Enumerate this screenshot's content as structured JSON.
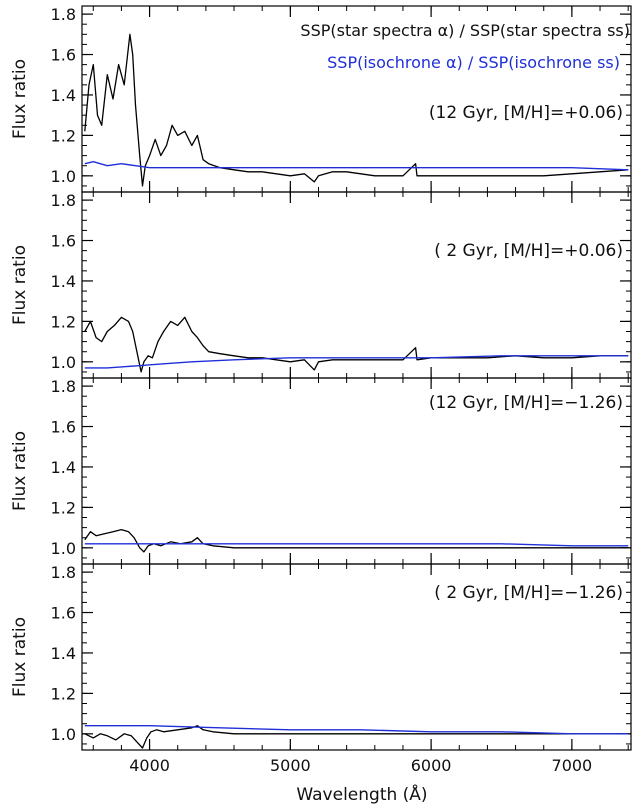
{
  "chart_data": {
    "type": "line",
    "xlabel": "Wavelength (Å)",
    "ylabel": "Flux ratio",
    "xlim": [
      3520,
      7420
    ],
    "ylim": [
      0.92,
      1.84
    ],
    "x_ticks": [
      "4000",
      "5000",
      "6000",
      "7000"
    ],
    "y_ticks": [
      "1.0",
      "1.2",
      "1.4",
      "1.6",
      "1.8"
    ],
    "legend": [
      {
        "label": "SSP(star spectra α) / SSP(star spectra ss)",
        "color": "#000000"
      },
      {
        "label": "SSP(isochrone α) / SSP(isochrone ss)",
        "color": "#1f2fd8"
      }
    ],
    "panels": [
      {
        "label": "(12 Gyr, [M/H]=+0.06)",
        "series": [
          {
            "color": "#000000",
            "x": [
              3540,
              3570,
              3600,
              3630,
              3660,
              3700,
              3740,
              3780,
              3820,
              3860,
              3880,
              3900,
              3930,
              3950,
              3970,
              4000,
              4040,
              4080,
              4120,
              4160,
              4200,
              4250,
              4300,
              4340,
              4380,
              4420,
              4500,
              4600,
              4700,
              4800,
              4900,
              5000,
              5100,
              5170,
              5200,
              5300,
              5400,
              5500,
              5600,
              5700,
              5800,
              5890,
              5900,
              6000,
              6200,
              6400,
              6600,
              6800,
              7000,
              7200,
              7400
            ],
            "y": [
              1.22,
              1.45,
              1.55,
              1.3,
              1.25,
              1.5,
              1.38,
              1.55,
              1.45,
              1.7,
              1.6,
              1.35,
              1.1,
              0.95,
              1.05,
              1.1,
              1.18,
              1.1,
              1.15,
              1.25,
              1.2,
              1.22,
              1.15,
              1.2,
              1.08,
              1.06,
              1.04,
              1.03,
              1.02,
              1.02,
              1.01,
              1.0,
              1.01,
              0.97,
              1.0,
              1.02,
              1.02,
              1.01,
              1.0,
              1.0,
              1.0,
              1.06,
              1.0,
              1.0,
              1.0,
              1.0,
              1.0,
              1.0,
              1.01,
              1.02,
              1.03
            ]
          },
          {
            "color": "#1f2fd8",
            "x": [
              3540,
              3600,
              3700,
              3800,
              3900,
              4000,
              4200,
              4500,
              5000,
              5500,
              6000,
              6500,
              7000,
              7400
            ],
            "y": [
              1.06,
              1.07,
              1.05,
              1.06,
              1.05,
              1.04,
              1.04,
              1.04,
              1.04,
              1.04,
              1.04,
              1.04,
              1.04,
              1.03
            ]
          }
        ]
      },
      {
        "label": "( 2 Gyr, [M/H]=+0.06)",
        "series": [
          {
            "color": "#000000",
            "x": [
              3540,
              3580,
              3620,
              3660,
              3700,
              3750,
              3800,
              3850,
              3880,
              3910,
              3940,
              3960,
              3990,
              4020,
              4060,
              4100,
              4150,
              4200,
              4250,
              4300,
              4340,
              4380,
              4420,
              4500,
              4600,
              4700,
              4800,
              4900,
              5000,
              5100,
              5170,
              5200,
              5300,
              5400,
              5500,
              5600,
              5700,
              5800,
              5890,
              5900,
              6000,
              6200,
              6400,
              6600,
              6800,
              7000,
              7200,
              7400
            ],
            "y": [
              1.15,
              1.2,
              1.12,
              1.1,
              1.15,
              1.18,
              1.22,
              1.2,
              1.15,
              1.05,
              0.95,
              1.0,
              1.03,
              1.02,
              1.1,
              1.15,
              1.2,
              1.18,
              1.22,
              1.15,
              1.12,
              1.08,
              1.05,
              1.04,
              1.03,
              1.02,
              1.02,
              1.01,
              1.0,
              1.01,
              0.96,
              1.0,
              1.01,
              1.01,
              1.01,
              1.01,
              1.01,
              1.01,
              1.07,
              1.01,
              1.02,
              1.02,
              1.02,
              1.03,
              1.02,
              1.02,
              1.03,
              1.03
            ]
          },
          {
            "color": "#1f2fd8",
            "x": [
              3540,
              3700,
              3900,
              4100,
              4300,
              4600,
              5000,
              5500,
              6000,
              6500,
              7000,
              7400
            ],
            "y": [
              0.97,
              0.97,
              0.98,
              0.99,
              1.0,
              1.01,
              1.02,
              1.02,
              1.02,
              1.03,
              1.03,
              1.03
            ]
          }
        ]
      },
      {
        "label": "(12 Gyr, [M/H]=−1.26)",
        "series": [
          {
            "color": "#000000",
            "x": [
              3540,
              3580,
              3620,
              3680,
              3740,
              3800,
              3850,
              3890,
              3930,
              3960,
              3990,
              4030,
              4080,
              4150,
              4220,
              4300,
              4340,
              4380,
              4450,
              4600,
              4800,
              5000,
              5200,
              5500,
              6000,
              6500,
              7000,
              7400
            ],
            "y": [
              1.04,
              1.08,
              1.06,
              1.07,
              1.08,
              1.09,
              1.08,
              1.05,
              1.0,
              0.98,
              1.01,
              1.02,
              1.01,
              1.03,
              1.02,
              1.03,
              1.05,
              1.02,
              1.01,
              1.0,
              1.0,
              1.0,
              1.0,
              1.0,
              1.0,
              1.0,
              1.0,
              1.0
            ]
          },
          {
            "color": "#1f2fd8",
            "x": [
              3540,
              3800,
              4000,
              4500,
              5000,
              5500,
              6000,
              6500,
              7000,
              7400
            ],
            "y": [
              1.02,
              1.02,
              1.02,
              1.02,
              1.02,
              1.02,
              1.02,
              1.02,
              1.01,
              1.01
            ]
          }
        ]
      },
      {
        "label": "( 2 Gyr, [M/H]=−1.26)",
        "series": [
          {
            "color": "#000000",
            "x": [
              3540,
              3600,
              3650,
              3700,
              3760,
              3820,
              3870,
              3910,
              3950,
              3980,
              4010,
              4050,
              4100,
              4200,
              4300,
              4340,
              4380,
              4450,
              4600,
              4800,
              5000,
              5200,
              5500,
              6000,
              6500,
              7000,
              7400
            ],
            "y": [
              1.0,
              0.98,
              1.0,
              0.99,
              0.97,
              1.0,
              0.99,
              0.96,
              0.93,
              0.98,
              1.01,
              1.02,
              1.01,
              1.02,
              1.03,
              1.04,
              1.02,
              1.01,
              1.0,
              1.0,
              1.0,
              1.0,
              1.0,
              1.0,
              1.0,
              1.0,
              1.0
            ]
          },
          {
            "color": "#1f2fd8",
            "x": [
              3540,
              3800,
              4000,
              4500,
              5000,
              5500,
              6000,
              6500,
              7000,
              7400
            ],
            "y": [
              1.04,
              1.04,
              1.04,
              1.03,
              1.02,
              1.02,
              1.01,
              1.01,
              1.0,
              1.0
            ]
          }
        ]
      }
    ]
  }
}
